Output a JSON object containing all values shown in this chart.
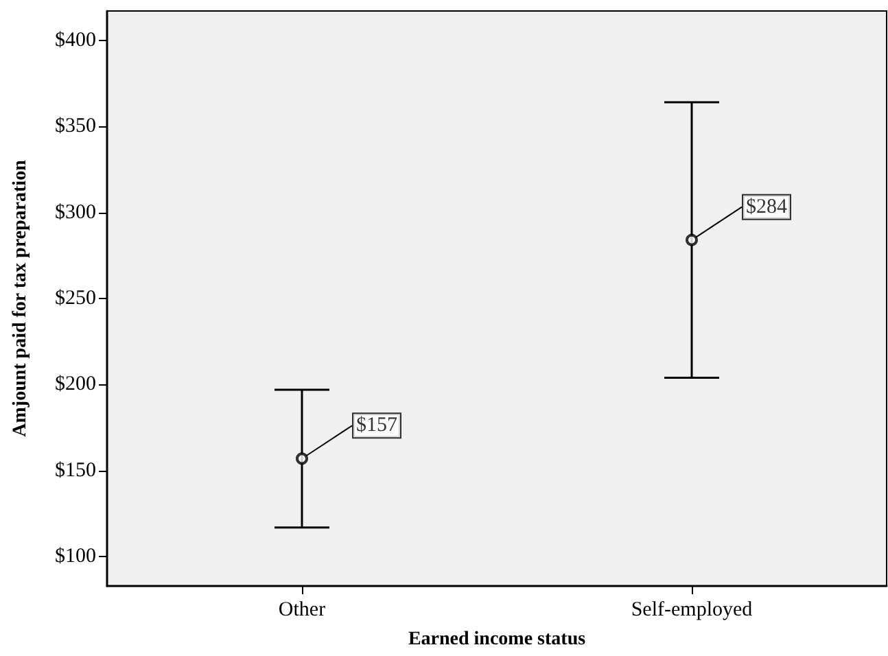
{
  "chart_data": {
    "type": "scatter",
    "xlabel": "Earned income status",
    "ylabel": "Amjount paid for tax preparation",
    "categories": [
      "Other",
      "Self-employed"
    ],
    "series": [
      {
        "color": "#000000",
        "values": [
          157,
          284
        ],
        "errors": [
          [
            117,
            197
          ],
          [
            204,
            364
          ]
        ],
        "value_labels": [
          "$157",
          "$284"
        ]
      }
    ],
    "marker": "circle",
    "ylim": [
      83,
      417
    ],
    "yticks": [
      {
        "value": 100,
        "label": "$100"
      },
      {
        "value": 150,
        "label": "$150"
      },
      {
        "value": 200,
        "label": "$200"
      },
      {
        "value": 250,
        "label": "$250"
      },
      {
        "value": 300,
        "label": "$300"
      },
      {
        "value": 350,
        "label": "$350"
      },
      {
        "value": 400,
        "label": "$400"
      }
    ],
    "grid": false
  }
}
